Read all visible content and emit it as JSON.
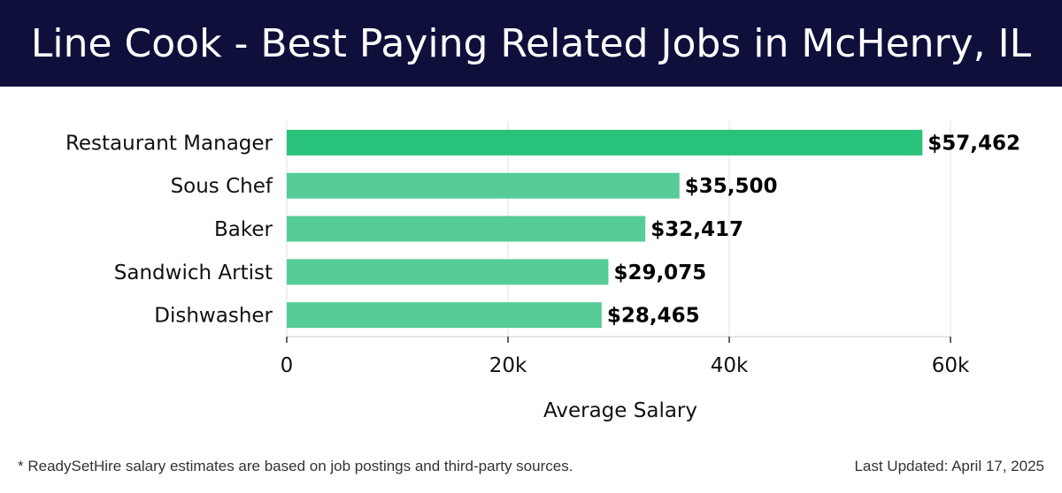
{
  "title": "Line Cook - Best Paying Related Jobs in McHenry, IL",
  "footer": {
    "note": "* ReadySetHire salary estimates are based on job postings and third-party sources.",
    "updated": "Last Updated: April 17, 2025"
  },
  "colors": {
    "header_bg": "#0e0f3a",
    "top_bar": "#29c27a",
    "bar": "#56cc98"
  },
  "chart_data": {
    "type": "bar",
    "orientation": "horizontal",
    "categories": [
      "Restaurant Manager",
      "Sous Chef",
      "Baker",
      "Sandwich Artist",
      "Dishwasher"
    ],
    "values": [
      57462,
      35500,
      32417,
      29075,
      28465
    ],
    "value_labels": [
      "$57,462",
      "$35,500",
      "$32,417",
      "$29,075",
      "$28,465"
    ],
    "xlabel": "Average Salary",
    "ylabel": "",
    "xlim": [
      0,
      60000
    ],
    "xticks": [
      0,
      20000,
      40000,
      60000
    ],
    "xtick_labels": [
      "0",
      "20k",
      "40k",
      "60k"
    ],
    "grid": true
  }
}
